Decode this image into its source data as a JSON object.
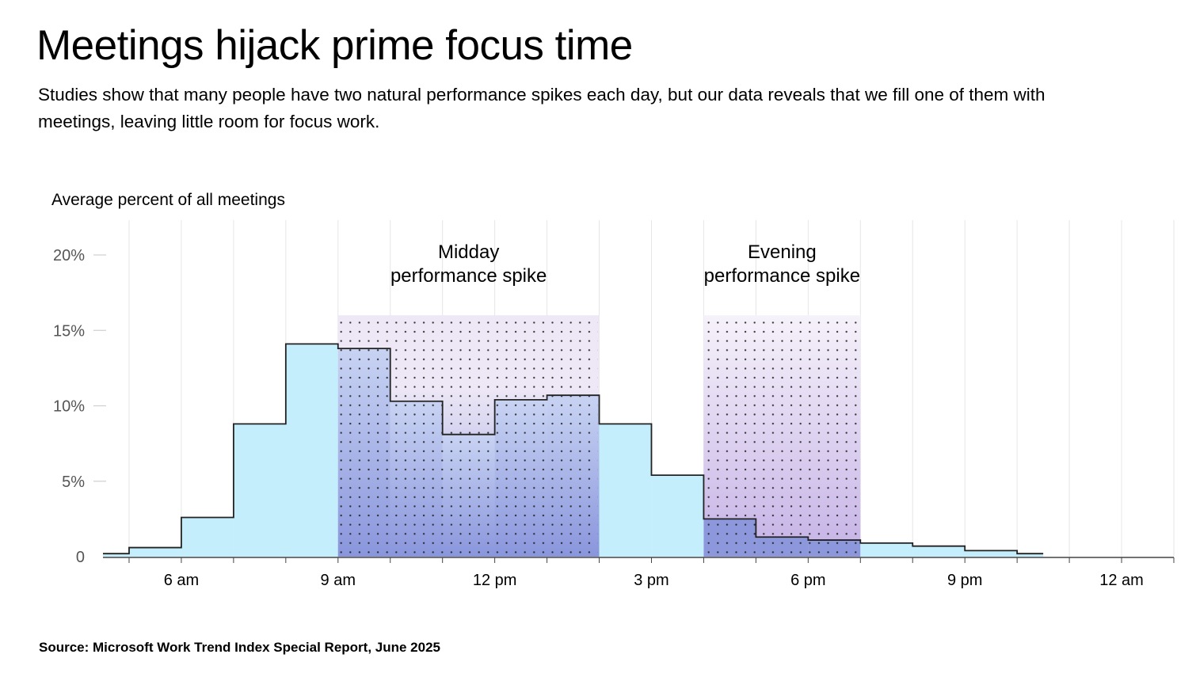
{
  "header": {
    "title": "Meetings hijack prime focus time",
    "subtitle": "Studies show that many people have two natural performance spikes each day, but our data reveals that we fill one of them with meetings, leaving little room for focus work."
  },
  "footer": {
    "source": "Source: Microsoft Work Trend Index Special Report, June 2025"
  },
  "colors": {
    "bar_fill": "#c5eefd",
    "highlight_top": "#eee8f6",
    "highlight_bottom": "#8f9ade",
    "evening_bottom": "#c5b2e6",
    "outline": "#222222",
    "dots": "#1a1a1a"
  },
  "chart_data": {
    "type": "area",
    "style": "step histogram",
    "ylabel": "Average percent of all meetings",
    "ylim": [
      0,
      20
    ],
    "y_ticks": [
      0,
      5,
      10,
      15,
      20
    ],
    "y_tick_labels": [
      "0",
      "5%",
      "10%",
      "15%",
      "20%"
    ],
    "x_domain": [
      4.5,
      25
    ],
    "x_ticks": [
      6,
      9,
      12,
      15,
      18,
      21,
      24
    ],
    "x_tick_labels": [
      "6 am",
      "9 am",
      "12 pm",
      "3 pm",
      "6 pm",
      "9 pm",
      "12 am"
    ],
    "bins": [
      {
        "start": 4.5,
        "end": 5.0,
        "value": 0.2
      },
      {
        "start": 5.0,
        "end": 6.0,
        "value": 0.6
      },
      {
        "start": 6.0,
        "end": 7.0,
        "value": 2.6
      },
      {
        "start": 7.0,
        "end": 8.0,
        "value": 8.8
      },
      {
        "start": 8.0,
        "end": 9.0,
        "value": 14.1
      },
      {
        "start": 9.0,
        "end": 10.0,
        "value": 13.8
      },
      {
        "start": 10.0,
        "end": 11.0,
        "value": 10.3
      },
      {
        "start": 11.0,
        "end": 12.0,
        "value": 8.1
      },
      {
        "start": 12.0,
        "end": 13.0,
        "value": 10.4
      },
      {
        "start": 13.0,
        "end": 14.0,
        "value": 10.7
      },
      {
        "start": 14.0,
        "end": 15.0,
        "value": 8.8
      },
      {
        "start": 15.0,
        "end": 16.0,
        "value": 5.4
      },
      {
        "start": 16.0,
        "end": 17.0,
        "value": 2.5
      },
      {
        "start": 17.0,
        "end": 18.0,
        "value": 1.3
      },
      {
        "start": 18.0,
        "end": 19.0,
        "value": 1.1
      },
      {
        "start": 19.0,
        "end": 20.0,
        "value": 0.9
      },
      {
        "start": 20.0,
        "end": 21.0,
        "value": 0.7
      },
      {
        "start": 21.0,
        "end": 22.0,
        "value": 0.4
      },
      {
        "start": 22.0,
        "end": 22.5,
        "value": 0.2
      }
    ],
    "highlight_bands": [
      {
        "label_line1": "Midday",
        "label_line2": "performance spike",
        "start": 9.0,
        "end": 14.0,
        "top": 16
      },
      {
        "label_line1": "Evening",
        "label_line2": "performance spike",
        "start": 16.0,
        "end": 19.0,
        "top": 16
      }
    ],
    "grid": "vertical",
    "legend": "none"
  }
}
